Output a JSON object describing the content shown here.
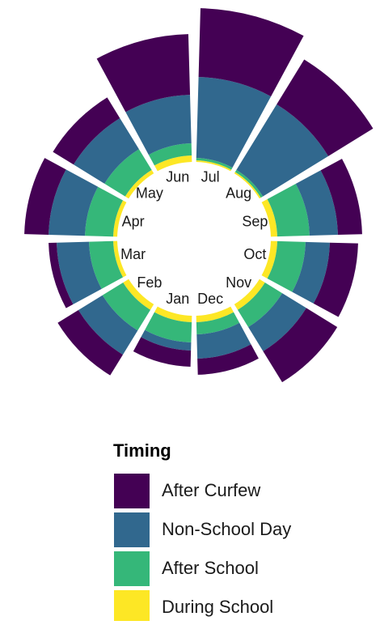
{
  "chart_data": {
    "type": "polar-stacked-bar",
    "categories": [
      "Jan",
      "Feb",
      "Mar",
      "Apr",
      "May",
      "Jun",
      "Jul",
      "Aug",
      "Sep",
      "Oct",
      "Nov",
      "Dec"
    ],
    "legend_title": "Timing",
    "series": [
      {
        "name": "After Curfew",
        "color": "#440154",
        "values": [
          20,
          30,
          10,
          30,
          30,
          75,
          85,
          65,
          30,
          35,
          45,
          20
        ]
      },
      {
        "name": "Non-School Day",
        "color": "#31688e",
        "values": [
          10,
          35,
          40,
          45,
          45,
          60,
          100,
          95,
          35,
          30,
          35,
          30
        ]
      },
      {
        "name": "After School",
        "color": "#35b779",
        "values": [
          25,
          30,
          30,
          35,
          30,
          15,
          3,
          3,
          40,
          35,
          25,
          15
        ]
      },
      {
        "name": "During School",
        "color": "#fde725",
        "values": [
          8,
          8,
          5,
          5,
          5,
          8,
          2,
          2,
          8,
          8,
          8,
          8
        ]
      }
    ]
  }
}
